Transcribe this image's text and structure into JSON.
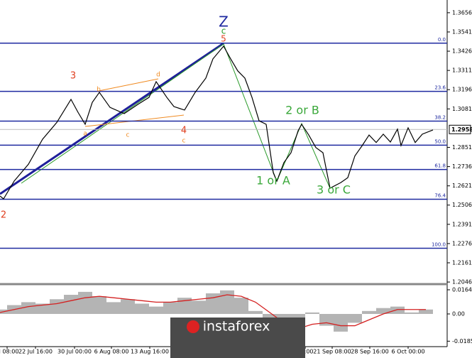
{
  "logo": "instaforex",
  "chart_data": [
    {
      "type": "line",
      "x": [
        0,
        1,
        4,
        8,
        12,
        16,
        20,
        22,
        24,
        26,
        28,
        31,
        35,
        39,
        42,
        44,
        47,
        49,
        52,
        55,
        58,
        60,
        63,
        65,
        67,
        69,
        71,
        73,
        75,
        77,
        78,
        80,
        82,
        84,
        85,
        87,
        89,
        91,
        93,
        96,
        98,
        100,
        102,
        104,
        106,
        108,
        110,
        112,
        113,
        115,
        117,
        119,
        122
      ],
      "series": [
        {
          "color": "#000000",
          "values": [
            1.256,
            1.2543,
            1.265,
            1.275,
            1.29,
            1.3,
            1.3138,
            1.306,
            1.2989,
            1.312,
            1.318,
            1.309,
            1.3053,
            1.311,
            1.315,
            1.3244,
            1.315,
            1.3095,
            1.3074,
            1.318,
            1.3265,
            1.338,
            1.3456,
            1.338,
            1.3308,
            1.3265,
            1.315,
            1.301,
            1.2989,
            1.27,
            1.2649,
            1.276,
            1.2819,
            1.295,
            1.2989,
            1.2925,
            1.285,
            1.2819,
            1.2607,
            1.264,
            1.267,
            1.28,
            1.286,
            1.2925,
            1.288,
            1.293,
            1.2883,
            1.296,
            1.2862,
            1.2968,
            1.288,
            1.293,
            1.2955
          ]
        }
      ],
      "xlim": [
        0,
        126
      ],
      "xticks": [
        {
          "value": 2,
          "label": "ul 08:00"
        },
        {
          "value": 10,
          "label": "22 Jul 16:00"
        },
        {
          "value": 21,
          "label": "30 Jul 00:00"
        },
        {
          "value": 31.4,
          "label": "6 Aug 08:00"
        },
        {
          "value": 42.2,
          "label": "13 Aug 16:00"
        },
        {
          "value": 86,
          "label": "00:00"
        },
        {
          "value": 93.6,
          "label": "21 Sep 08:00"
        },
        {
          "value": 104.2,
          "label": "28 Sep 16:00"
        },
        {
          "value": 115,
          "label": "6 Oct 00:00"
        }
      ],
      "ylim": [
        1.2042,
        1.3732
      ],
      "yticks": [
        1.3656,
        1.3541,
        1.3426,
        1.3311,
        1.3196,
        1.3081,
        1.2851,
        1.2736,
        1.2621,
        1.2506,
        1.2391,
        1.2276,
        1.2161,
        1.2046
      ],
      "current_price": 1.2958,
      "fib_color": "#1f2aa0",
      "fib_levels": [
        {
          "price": 1.3474,
          "label": "0.0"
        },
        {
          "price": 1.3186,
          "label": "23.6"
        },
        {
          "price": 1.3008,
          "label": "38.2"
        },
        {
          "price": 1.2864,
          "label": "50.0"
        },
        {
          "price": 1.2719,
          "label": "61.8"
        },
        {
          "price": 1.2541,
          "label": "76.4"
        },
        {
          "price": 1.2248,
          "label": "100.0"
        }
      ],
      "annotations": [
        {
          "text": "Z",
          "color": "#1f2aa0"
        },
        {
          "text": "c",
          "color": "#2a9a2a"
        },
        {
          "text": "5",
          "color": "#e04020"
        },
        {
          "text": "3",
          "color": "#e04020"
        },
        {
          "text": "b",
          "color": "#f08a20"
        },
        {
          "text": "d",
          "color": "#f08a20"
        },
        {
          "text": "a",
          "color": "#f08a20"
        },
        {
          "text": "c",
          "color": "#f08a20"
        },
        {
          "text": "c",
          "color": "#f08a20"
        },
        {
          "text": "4",
          "color": "#e04020"
        },
        {
          "text": "2",
          "color": "#e04020"
        },
        {
          "text": "2 or B",
          "color": "#3aa83a"
        },
        {
          "text": "1 or A",
          "color": "#3aa83a"
        },
        {
          "text": "3 or C",
          "color": "#3aa83a"
        }
      ]
    },
    {
      "type": "histogram-oscillator",
      "x": [
        0,
        4,
        8,
        12,
        16,
        20,
        24,
        28,
        32,
        36,
        40,
        44,
        48,
        52,
        56,
        60,
        64,
        68,
        72,
        76,
        80,
        84,
        88,
        92,
        96,
        100,
        104,
        108,
        112,
        116,
        120
      ],
      "series": [
        {
          "color": "#b4b4b4",
          "values": [
            0.003,
            0.006,
            0.008,
            0.007,
            0.01,
            0.013,
            0.015,
            0.012,
            0.008,
            0.01,
            0.007,
            0.005,
            0.008,
            0.011,
            0.009,
            0.014,
            0.016,
            0.011,
            0.002,
            -0.012,
            -0.016,
            -0.01,
            0.001,
            -0.008,
            -0.012,
            -0.006,
            0.002,
            0.004,
            0.005,
            0.001,
            0.003
          ]
        },
        {
          "color": "#d42020",
          "values": [
            0.001,
            0.003,
            0.005,
            0.006,
            0.007,
            0.009,
            0.011,
            0.012,
            0.011,
            0.01,
            0.009,
            0.008,
            0.008,
            0.009,
            0.01,
            0.011,
            0.013,
            0.012,
            0.008,
            0.001,
            -0.006,
            -0.01,
            -0.007,
            -0.006,
            -0.008,
            -0.008,
            -0.004,
            0.0,
            0.003,
            0.003,
            0.003
          ]
        }
      ],
      "xlim": [
        0,
        126
      ],
      "ylim": [
        -0.0222,
        0.0188
      ],
      "yticks": [
        0.0164,
        {
          "value": 0,
          "label": "0.00"
        },
        {
          "value": -0.0185,
          "label": "-0.0185"
        }
      ]
    }
  ]
}
